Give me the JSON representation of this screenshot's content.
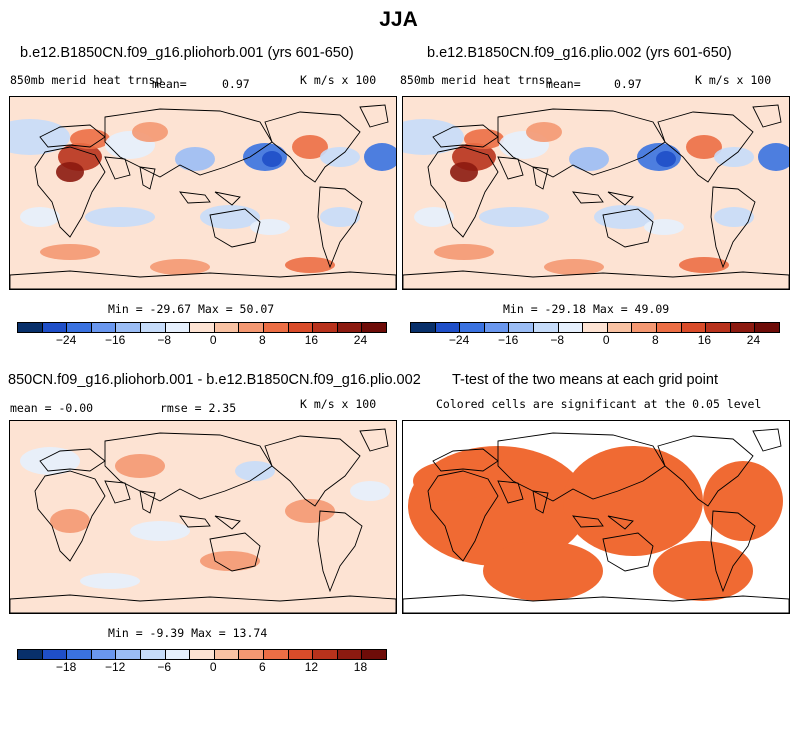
{
  "figure": {
    "title": "JJA"
  },
  "panels": [
    {
      "title": "b.e12.B1850CN.f09_g16.pliohorb.001 (yrs 601-650)",
      "left_label": "850mb merid heat trnsp",
      "mean_label": "mean=",
      "mean_value": "0.97",
      "units": "K m/s x 100",
      "minmax": "Min = -29.67 Max = 50.07"
    },
    {
      "title": "b.e12.B1850CN.f09_g16.plio.002 (yrs 601-650)",
      "left_label": "850mb merid heat trnsp",
      "mean_label": "mean=",
      "mean_value": "0.97",
      "units": "K m/s x 100",
      "minmax": "Min = -29.18 Max = 49.09"
    },
    {
      "title": "850CN.f09_g16.pliohorb.001 - b.e12.B1850CN.f09_g16.plio.002",
      "mean_text": "mean = -0.00",
      "rmse_text": "rmse = 2.35",
      "units": "K m/s x 100",
      "minmax": "Min = -9.39 Max = 13.74"
    },
    {
      "title": "T-test of the two means at each grid point",
      "subtitle": "Colored cells are significant at the 0.05 level"
    }
  ],
  "chart_data": [
    {
      "type": "heatmap",
      "title": "b.e12.B1850CN.f09_g16.pliohorb.001 (yrs 601-650)",
      "variable": "850mb merid heat trnsp",
      "units": "K m/s x 100",
      "mean": 0.97,
      "min": -29.67,
      "max": 50.07,
      "colorbar_ticks": [
        -24,
        -16,
        -8,
        0,
        8,
        16,
        24
      ],
      "contour_levels": [
        -28,
        -24,
        -20,
        -16,
        -12,
        -8,
        -4,
        0,
        4,
        8,
        12,
        16,
        20,
        24,
        28
      ]
    },
    {
      "type": "heatmap",
      "title": "b.e12.B1850CN.f09_g16.plio.002 (yrs 601-650)",
      "variable": "850mb merid heat trnsp",
      "units": "K m/s x 100",
      "mean": 0.97,
      "min": -29.18,
      "max": 49.09,
      "colorbar_ticks": [
        -24,
        -16,
        -8,
        0,
        8,
        16,
        24
      ],
      "contour_levels": [
        -28,
        -24,
        -20,
        -16,
        -12,
        -8,
        -4,
        0,
        4,
        8,
        12,
        16,
        20,
        24,
        28
      ]
    },
    {
      "type": "heatmap",
      "title": "850CN.f09_g16.pliohorb.001 - b.e12.B1850CN.f09_g16.plio.002",
      "units": "K m/s x 100",
      "mean": -0.0,
      "rmse": 2.35,
      "min": -9.39,
      "max": 13.74,
      "colorbar_ticks": [
        -18,
        -12,
        -6,
        0,
        6,
        12,
        18
      ],
      "contour_levels": [
        -21,
        -18,
        -15,
        -12,
        -9,
        -6,
        -3,
        0,
        3,
        6,
        9,
        12,
        15,
        18,
        21
      ]
    },
    {
      "type": "heatmap",
      "title": "T-test of the two means at each grid point",
      "significance_level": 0.05
    }
  ],
  "colors": {
    "scale": [
      "#08306b",
      "#1f4fc8",
      "#3a72e0",
      "#6a97ee",
      "#9bbdf5",
      "#c6dcfa",
      "#e6f0fd",
      "#fde3d3",
      "#f9c2a3",
      "#f49872",
      "#ec6e45",
      "#d94c2a",
      "#b8321c",
      "#8c1a10",
      "#6e0c08"
    ],
    "significant": "#f06a33",
    "land_outline": "#000000"
  }
}
